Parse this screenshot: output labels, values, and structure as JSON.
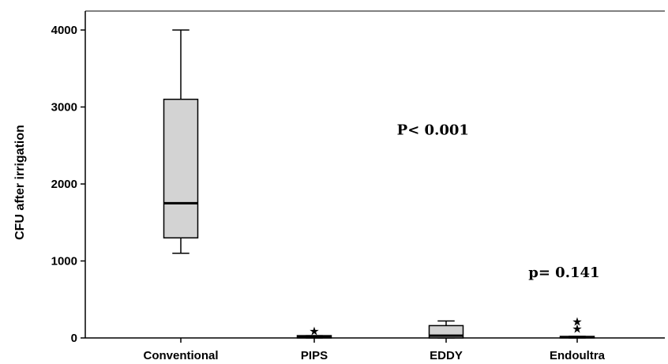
{
  "chart_data": {
    "type": "boxplot",
    "title": "",
    "xlabel": "",
    "ylabel": "CFU after irrigation",
    "ylim": [
      0,
      4000
    ],
    "yticks": [
      0,
      1000,
      2000,
      3000,
      4000
    ],
    "grid": false,
    "legend": "none",
    "box_fill": "#d3d3d3",
    "categories": [
      "Conventional",
      "PIPS",
      "EDDY",
      "Endoultra"
    ],
    "boxes": [
      {
        "category": "Conventional",
        "min": 1100,
        "q1": 1300,
        "median": 1750,
        "q3": 3100,
        "max": 4000,
        "outliers": []
      },
      {
        "category": "PIPS",
        "min": 0,
        "q1": 0,
        "median": 10,
        "q3": 30,
        "max": 30,
        "outliers": [
          100
        ]
      },
      {
        "category": "EDDY",
        "min": 0,
        "q1": 0,
        "median": 30,
        "q3": 160,
        "max": 220,
        "outliers": []
      },
      {
        "category": "Endoultra",
        "min": 0,
        "q1": 0,
        "median": 10,
        "q3": 20,
        "max": 20,
        "outliers": [
          130,
          220
        ]
      }
    ],
    "annotations": [
      {
        "text": "P< 0.001",
        "x": 1.9,
        "y": 2640
      },
      {
        "text": "p= 0.141",
        "x": 2.9,
        "y": 790
      }
    ]
  }
}
